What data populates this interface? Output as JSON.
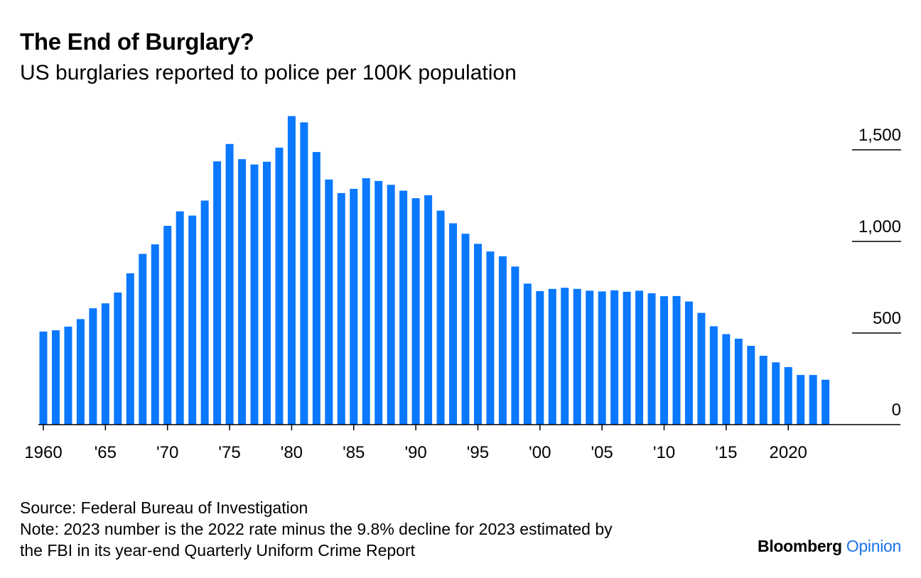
{
  "header": {
    "title": "The End of Burglary?",
    "subtitle": "US burglaries reported to police per 100K population"
  },
  "footer": {
    "source": "Source: Federal Bureau of Investigation",
    "note_line1": "Note: 2023 number is the 2022 rate minus the 9.8% decline for 2023 estimated by",
    "note_line2": "the FBI in its year-end Quarterly Uniform Crime Report"
  },
  "brand": {
    "name": "Bloomberg",
    "product": "Opinion"
  },
  "colors": {
    "bar": "#0a78ff",
    "axis": "#000000",
    "brand_accent": "#1a73e8"
  },
  "chart_data": {
    "type": "bar",
    "title": "The End of Burglary?",
    "subtitle": "US burglaries reported to police per 100K population",
    "ylim": [
      0,
      1700
    ],
    "y_ticks": [
      0,
      500,
      1000,
      1500
    ],
    "y_tick_labels": [
      "0",
      "500",
      "1,000",
      "1,500"
    ],
    "y_axis_side": "right",
    "grid": false,
    "x_tick_years": [
      1960,
      1965,
      1970,
      1975,
      1980,
      1985,
      1990,
      1995,
      2000,
      2005,
      2010,
      2015,
      2020
    ],
    "x_tick_labels": [
      "1960",
      "'65",
      "'70",
      "'75",
      "'80",
      "'85",
      "'90",
      "'95",
      "'00",
      "'05",
      "'10",
      "'15",
      "2020"
    ],
    "categories": [
      1960,
      1961,
      1962,
      1963,
      1964,
      1965,
      1966,
      1967,
      1968,
      1969,
      1970,
      1971,
      1972,
      1973,
      1974,
      1975,
      1976,
      1977,
      1978,
      1979,
      1980,
      1981,
      1982,
      1983,
      1984,
      1985,
      1986,
      1987,
      1988,
      1989,
      1990,
      1991,
      1992,
      1993,
      1994,
      1995,
      1996,
      1997,
      1998,
      1999,
      2000,
      2001,
      2002,
      2003,
      2004,
      2005,
      2006,
      2007,
      2008,
      2009,
      2010,
      2011,
      2012,
      2013,
      2014,
      2015,
      2016,
      2017,
      2018,
      2019,
      2020,
      2021,
      2022,
      2023
    ],
    "values": [
      508,
      515,
      535,
      576,
      635,
      662,
      721,
      826,
      932,
      984,
      1085,
      1164,
      1141,
      1223,
      1437,
      1532,
      1449,
      1420,
      1435,
      1512,
      1684,
      1650,
      1488,
      1338,
      1264,
      1287,
      1345,
      1330,
      1309,
      1277,
      1236,
      1252,
      1168,
      1099,
      1042,
      987,
      945,
      919,
      863,
      770,
      729,
      741,
      747,
      741,
      731,
      727,
      733,
      725,
      731,
      717,
      701,
      702,
      672,
      610,
      537,
      494,
      469,
      430,
      376,
      340,
      314,
      271,
      271,
      245
    ]
  }
}
